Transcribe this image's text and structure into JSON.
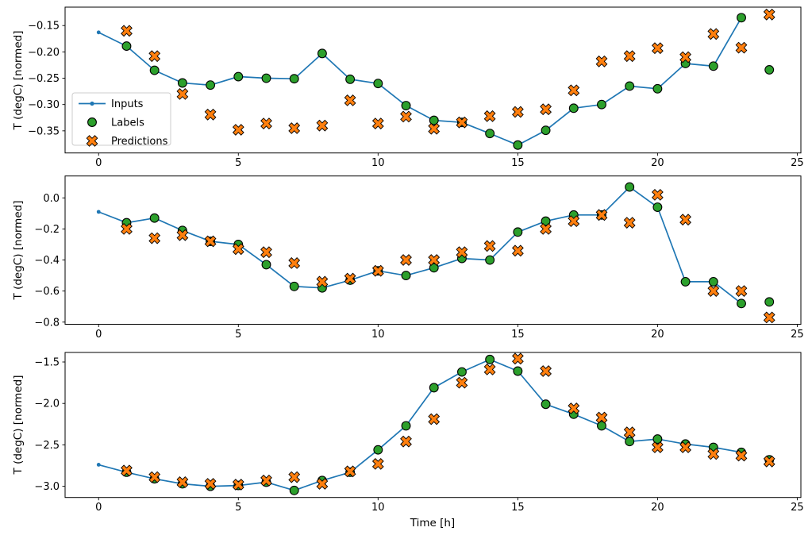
{
  "figure": {
    "background": "#ffffff",
    "xlabel": "Time [h]",
    "ylabel": "T (degC) [normed]",
    "xticks": [
      0,
      5,
      10,
      15,
      20,
      25
    ],
    "xtick_labels": [
      "0",
      "5",
      "10",
      "15",
      "20",
      "25"
    ],
    "xlim": [
      -1.2,
      25.13
    ],
    "colors": {
      "inputs": "#1f77b4",
      "labels": "#2ca02c",
      "predictions": "#ff7f0e",
      "edge": "#000000",
      "legend_border": "#cccccc",
      "text": "#000000"
    },
    "legend": {
      "items": [
        {
          "label": "Inputs",
          "marker": "line-dot"
        },
        {
          "label": "Labels",
          "marker": "circle"
        },
        {
          "label": "Predictions",
          "marker": "x"
        }
      ]
    }
  },
  "chart_data": [
    {
      "type": "line",
      "ylabel": "T (degC) [normed]",
      "ylim": [
        -0.392,
        -0.115
      ],
      "yticks": [
        -0.15,
        -0.2,
        -0.25,
        -0.3,
        -0.35
      ],
      "ytick_labels": [
        "−0.15",
        "−0.20",
        "−0.25",
        "−0.30",
        "−0.35"
      ],
      "series": [
        {
          "name": "Inputs",
          "type": "line",
          "x_start": 0,
          "values": [
            -0.163,
            -0.189,
            -0.235,
            -0.259,
            -0.263,
            -0.247,
            -0.25,
            -0.251,
            -0.203,
            -0.252,
            -0.26,
            -0.302,
            -0.33,
            -0.334,
            -0.355,
            -0.377,
            -0.349,
            -0.307,
            -0.3,
            -0.265,
            -0.27,
            -0.222,
            -0.227,
            -0.135
          ]
        },
        {
          "name": "Labels",
          "type": "scatter-circle",
          "x_start": 1,
          "values": [
            -0.189,
            -0.235,
            -0.259,
            -0.263,
            -0.247,
            -0.25,
            -0.251,
            -0.203,
            -0.252,
            -0.26,
            -0.302,
            -0.33,
            -0.334,
            -0.355,
            -0.377,
            -0.349,
            -0.307,
            -0.3,
            -0.265,
            -0.27,
            -0.222,
            -0.227,
            -0.135,
            -0.234
          ]
        },
        {
          "name": "Predictions",
          "type": "scatter-x",
          "x_start": 1,
          "values": [
            -0.16,
            -0.208,
            -0.28,
            -0.319,
            -0.348,
            -0.336,
            -0.345,
            -0.34,
            -0.292,
            -0.336,
            -0.323,
            -0.346,
            -0.334,
            -0.322,
            -0.314,
            -0.309,
            -0.273,
            -0.218,
            -0.208,
            -0.193,
            -0.21,
            -0.166,
            -0.192,
            -0.129
          ]
        }
      ]
    },
    {
      "type": "line",
      "ylabel": "T (degC) [normed]",
      "ylim": [
        -0.814,
        0.141
      ],
      "yticks": [
        0.0,
        -0.2,
        -0.4,
        -0.6,
        -0.8
      ],
      "ytick_labels": [
        "0.0",
        "−0.2",
        "−0.4",
        "−0.6",
        "−0.8"
      ],
      "series": [
        {
          "name": "Inputs",
          "type": "line",
          "x_start": 0,
          "values": [
            -0.09,
            -0.16,
            -0.13,
            -0.21,
            -0.28,
            -0.3,
            -0.43,
            -0.57,
            -0.58,
            -0.53,
            -0.47,
            -0.5,
            -0.45,
            -0.39,
            -0.4,
            -0.22,
            -0.15,
            -0.11,
            -0.11,
            0.07,
            -0.06,
            -0.54,
            -0.54,
            -0.68
          ]
        },
        {
          "name": "Labels",
          "type": "scatter-circle",
          "x_start": 1,
          "values": [
            -0.16,
            -0.13,
            -0.21,
            -0.28,
            -0.3,
            -0.43,
            -0.57,
            -0.58,
            -0.53,
            -0.47,
            -0.5,
            -0.45,
            -0.39,
            -0.4,
            -0.22,
            -0.15,
            -0.11,
            -0.11,
            0.07,
            -0.06,
            -0.54,
            -0.54,
            -0.68,
            -0.67
          ]
        },
        {
          "name": "Predictions",
          "type": "scatter-x",
          "x_start": 1,
          "values": [
            -0.2,
            -0.26,
            -0.24,
            -0.28,
            -0.33,
            -0.35,
            -0.42,
            -0.54,
            -0.52,
            -0.47,
            -0.4,
            -0.4,
            -0.35,
            -0.31,
            -0.34,
            -0.2,
            -0.15,
            -0.11,
            -0.16,
            0.02,
            -0.14,
            -0.6,
            -0.6,
            -0.77
          ]
        }
      ]
    },
    {
      "type": "line",
      "ylabel": "T (degC) [normed]",
      "ylim": [
        -3.135,
        -1.385
      ],
      "yticks": [
        -1.5,
        -2.0,
        -2.5,
        -3.0
      ],
      "ytick_labels": [
        "−1.5",
        "−2.0",
        "−2.5",
        "−3.0"
      ],
      "series": [
        {
          "name": "Inputs",
          "type": "line",
          "x_start": 0,
          "values": [
            -2.74,
            -2.83,
            -2.91,
            -2.97,
            -3.0,
            -2.99,
            -2.95,
            -3.05,
            -2.93,
            -2.83,
            -2.56,
            -2.27,
            -1.81,
            -1.62,
            -1.47,
            -1.61,
            -2.01,
            -2.13,
            -2.27,
            -2.46,
            -2.43,
            -2.49,
            -2.53,
            -2.59
          ]
        },
        {
          "name": "Labels",
          "type": "scatter-circle",
          "x_start": 1,
          "values": [
            -2.83,
            -2.91,
            -2.97,
            -3.0,
            -2.99,
            -2.95,
            -3.05,
            -2.93,
            -2.83,
            -2.56,
            -2.27,
            -1.81,
            -1.62,
            -1.47,
            -1.61,
            -2.01,
            -2.13,
            -2.27,
            -2.46,
            -2.43,
            -2.49,
            -2.53,
            -2.59,
            -2.68
          ]
        },
        {
          "name": "Predictions",
          "type": "scatter-x",
          "x_start": 1,
          "values": [
            -2.81,
            -2.89,
            -2.95,
            -2.97,
            -2.98,
            -2.93,
            -2.89,
            -2.97,
            -2.82,
            -2.73,
            -2.46,
            -2.19,
            -1.75,
            -1.59,
            -1.46,
            -1.61,
            -2.06,
            -2.17,
            -2.35,
            -2.53,
            -2.53,
            -2.61,
            -2.63,
            -2.7
          ]
        }
      ]
    }
  ]
}
